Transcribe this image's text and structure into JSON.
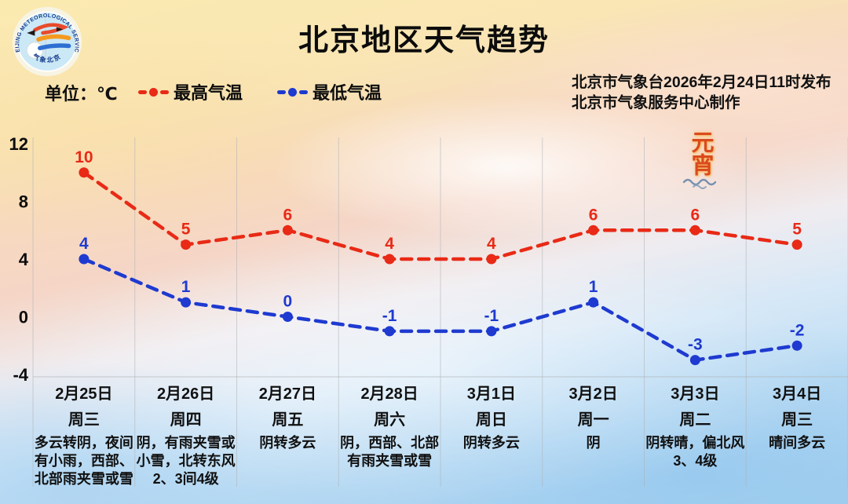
{
  "header": {
    "title": "北京地区天气趋势",
    "logo": {
      "ring_text": "BEIJING METEOROLOGICAL SERVICE",
      "bottom_text": "气象北京"
    },
    "publisher_line1": "北京市气象台2026年2月24日11时发布",
    "publisher_line2": "北京市气象服务中心制作"
  },
  "legend": {
    "unit_label": "单位：℃",
    "series": [
      {
        "label": "最高气温",
        "color": "#e82a16"
      },
      {
        "label": "最低气温",
        "color": "#1e3ad0"
      }
    ]
  },
  "decoration": {
    "festival_text": "元宵"
  },
  "chart_data": {
    "type": "line",
    "title": "北京地区天气趋势",
    "unit": "℃",
    "line_style": "dashed",
    "grid": "vertical column dividers + bottom axis line",
    "legend_position": "top-left",
    "yticks": [
      12,
      8,
      4,
      0,
      -4
    ],
    "ylim": [
      -5.5,
      12.5
    ],
    "categories": [
      "2月25日",
      "2月26日",
      "2月27日",
      "2月28日",
      "3月1日",
      "3月2日",
      "3月3日",
      "3月4日"
    ],
    "weekdays": [
      "周三",
      "周四",
      "周五",
      "周六",
      "周日",
      "周一",
      "周二",
      "周三"
    ],
    "weather": [
      "多云转阴，夜间有小雨，西部、北部雨夹雪或雪",
      "阴，有雨夹雪或小雪，北转东风2、3间4级",
      "阴转多云",
      "阴，西部、北部有雨夹雪或雪",
      "阴转多云",
      "阴",
      "阴转晴，偏北风3、4级",
      "晴间多云"
    ],
    "series": [
      {
        "name": "最高气温",
        "color": "#e82a16",
        "values": [
          10,
          5,
          6,
          4,
          4,
          6,
          6,
          5
        ]
      },
      {
        "name": "最低气温",
        "color": "#1e3ad0",
        "values": [
          4,
          1,
          0,
          -1,
          -1,
          1,
          -3,
          -2
        ]
      }
    ]
  }
}
